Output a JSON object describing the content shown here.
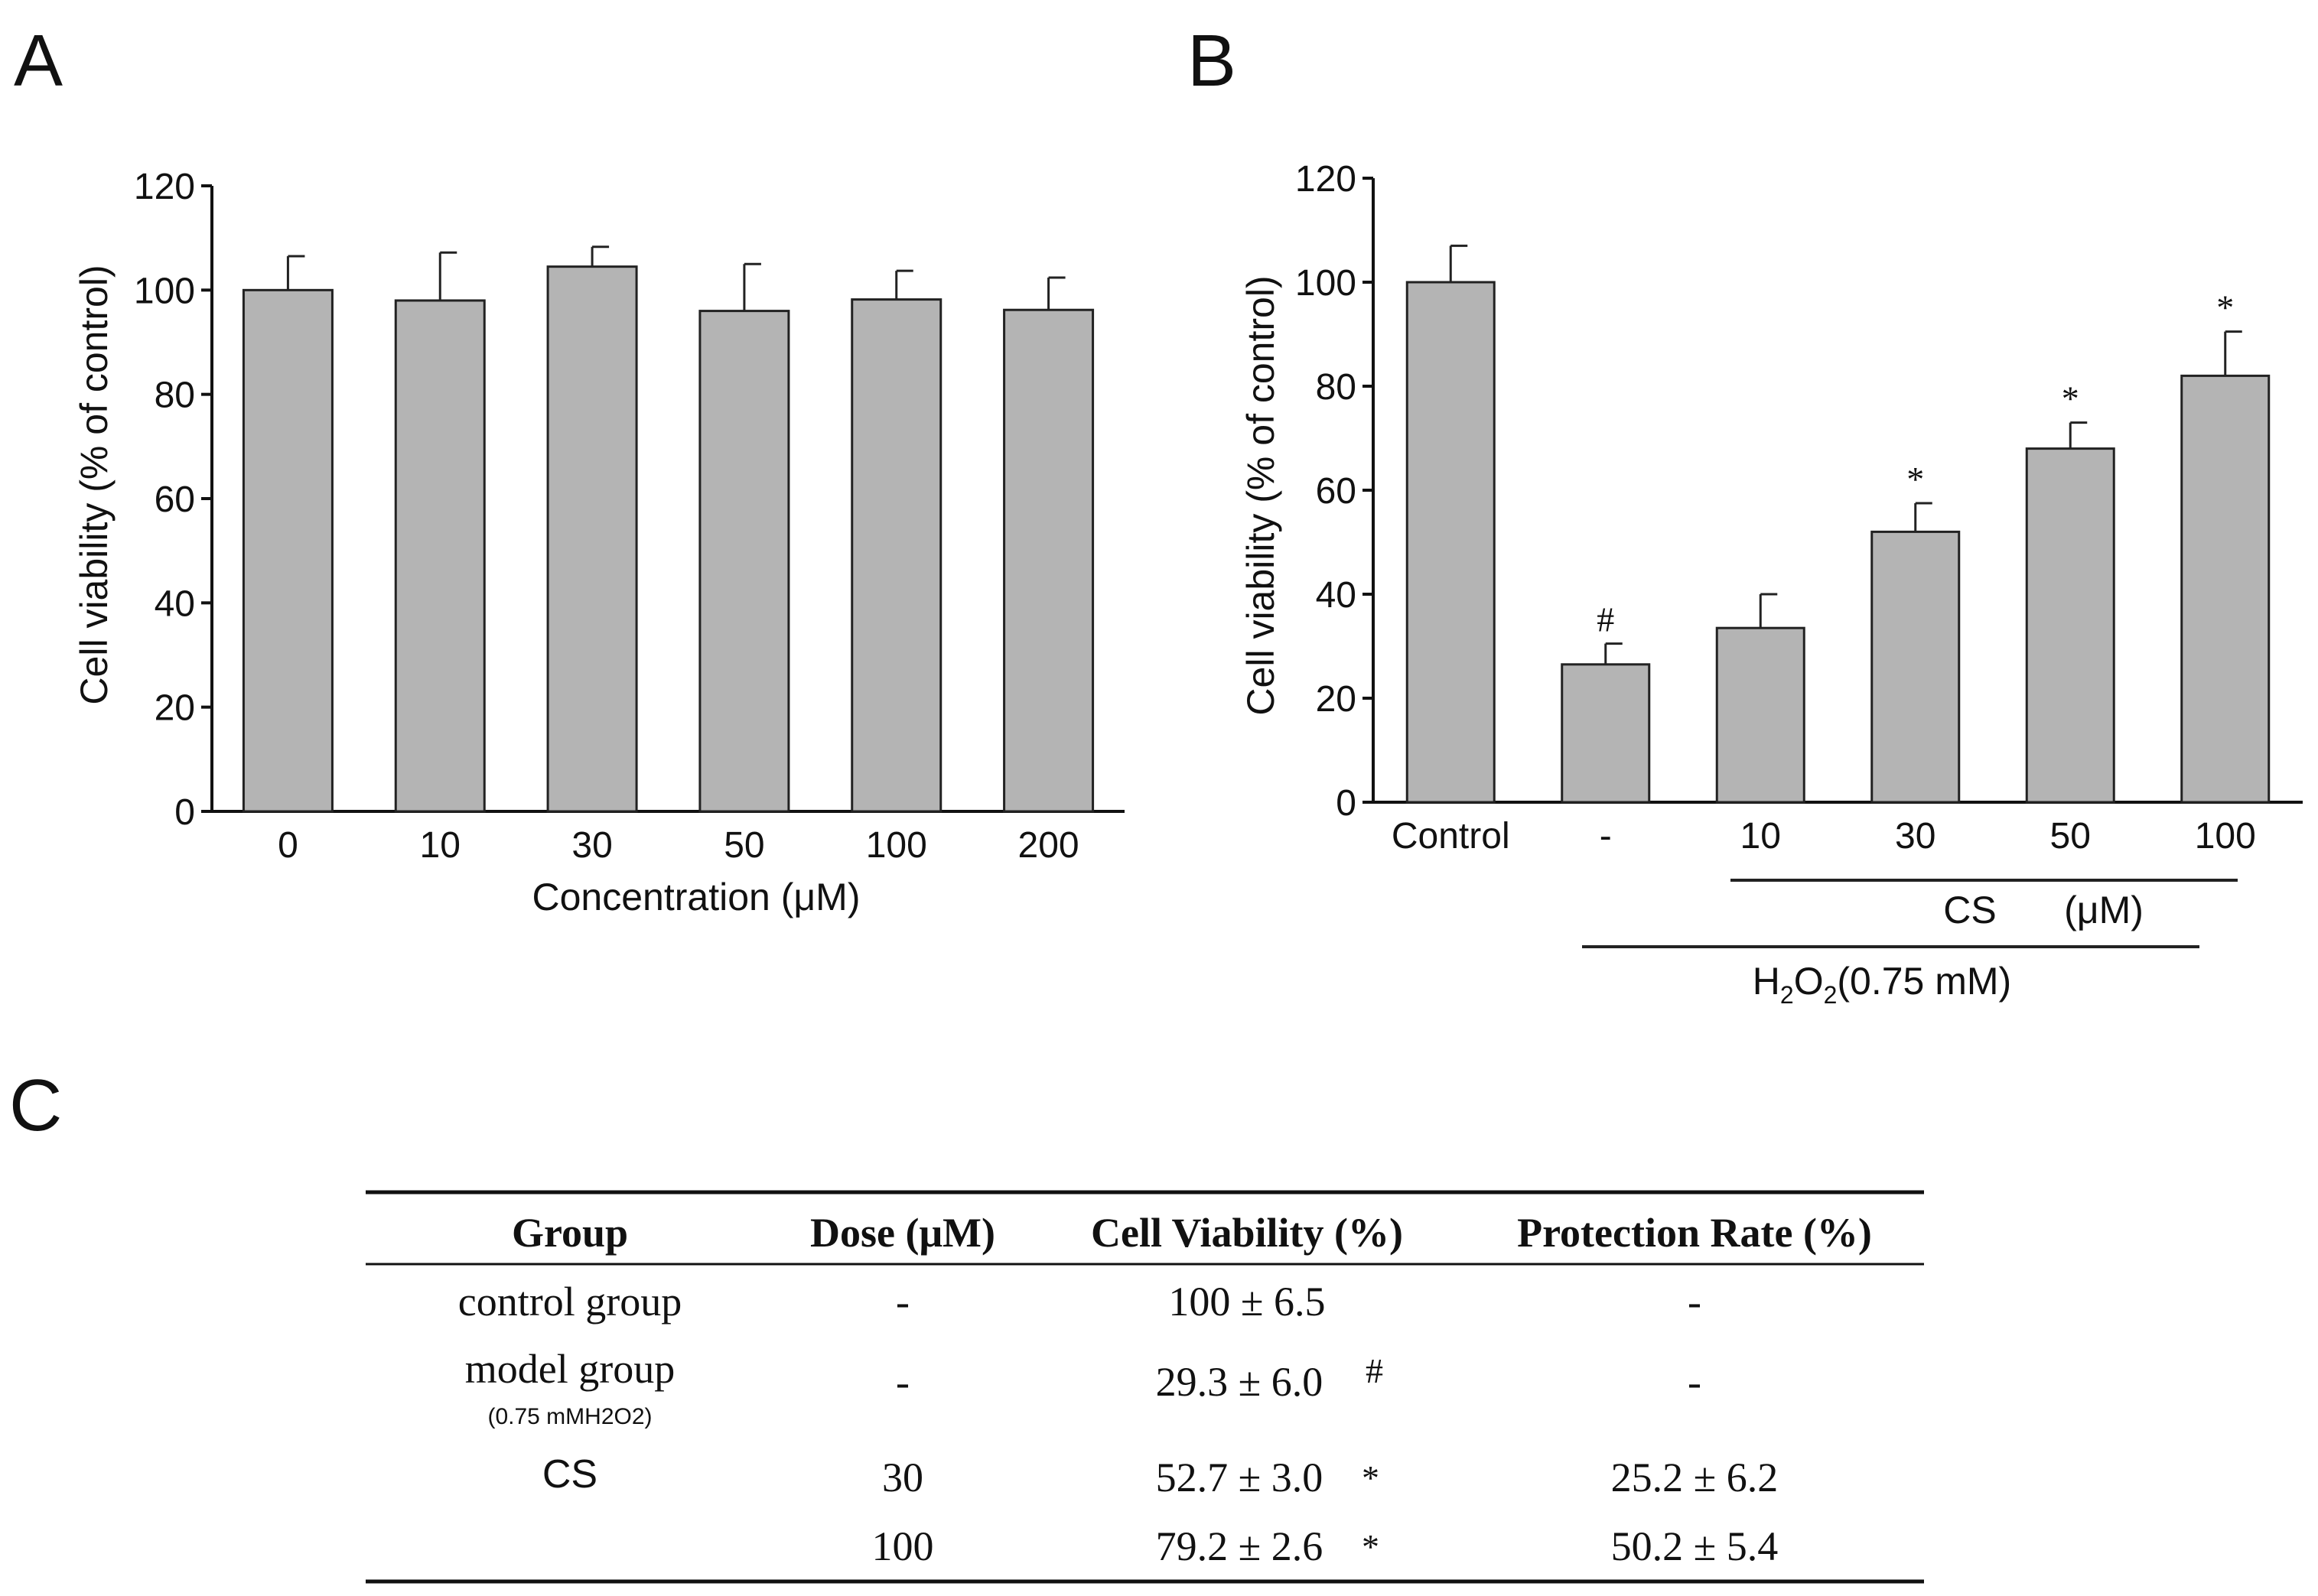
{
  "chart_data": [
    {
      "panel": "A",
      "type": "bar",
      "categories": [
        "0",
        "10",
        "30",
        "50",
        "100",
        "200"
      ],
      "values": [
        100,
        98,
        104.5,
        96,
        98.2,
        96.2
      ],
      "errors": [
        6.5,
        9.2,
        3.8,
        9,
        5.5,
        6.2
      ],
      "xlabel": "Concentration (μM)",
      "ylabel": "Cell viability (% of control)",
      "ylim": [
        0,
        120
      ],
      "yticks": [
        "0",
        "20",
        "40",
        "60",
        "80",
        "100",
        "120"
      ],
      "bar_color": "#b4b4b4",
      "grid": false
    },
    {
      "panel": "B",
      "type": "bar",
      "categories": [
        "Control",
        "-",
        "10",
        "30",
        "50",
        "100"
      ],
      "values": [
        100,
        26.5,
        33.5,
        52,
        68,
        82
      ],
      "errors": [
        7,
        4,
        6.5,
        5.5,
        5,
        8.5
      ],
      "annotations": [
        "",
        "#",
        "",
        "*",
        "*",
        "*"
      ],
      "ylabel": "Cell viability (% of control)",
      "ylim": [
        0,
        120
      ],
      "yticks": [
        "0",
        "20",
        "40",
        "60",
        "80",
        "100",
        "120"
      ],
      "bracket_labels": {
        "cs": "CS",
        "cs_unit": "(μM)",
        "h2o2_pre": "H",
        "h2o2_sub1": "2",
        "h2o2_mid": "O",
        "h2o2_sub2": "2",
        "h2o2_post": "(0.75 mM)"
      },
      "bar_color": "#b4b4b4",
      "grid": false
    },
    {
      "panel": "C",
      "type": "table",
      "columns": [
        "Group",
        "Dose (μM)",
        "Cell Viability (%)",
        "Protection Rate (%)"
      ],
      "rows": [
        {
          "group": "control group",
          "dose": "-",
          "viability": "100 ± 6.5",
          "protection": "-"
        },
        {
          "group": "model group",
          "group_note": "(0.75 mMH2O2)",
          "dose": "-",
          "viability": "29.3 ± 6.0",
          "viability_mark": "#",
          "protection": "-"
        },
        {
          "group": "CS",
          "dose": "30",
          "viability": "52.7 ± 3.0",
          "viability_mark": "*",
          "protection": "25.2 ± 6.2"
        },
        {
          "group": "",
          "dose": "100",
          "viability": "79.2 ± 2.6",
          "viability_mark": "*",
          "protection": "50.2 ± 5.4"
        }
      ]
    }
  ],
  "panel_labels": {
    "a": "A",
    "b": "B",
    "c": "C"
  }
}
